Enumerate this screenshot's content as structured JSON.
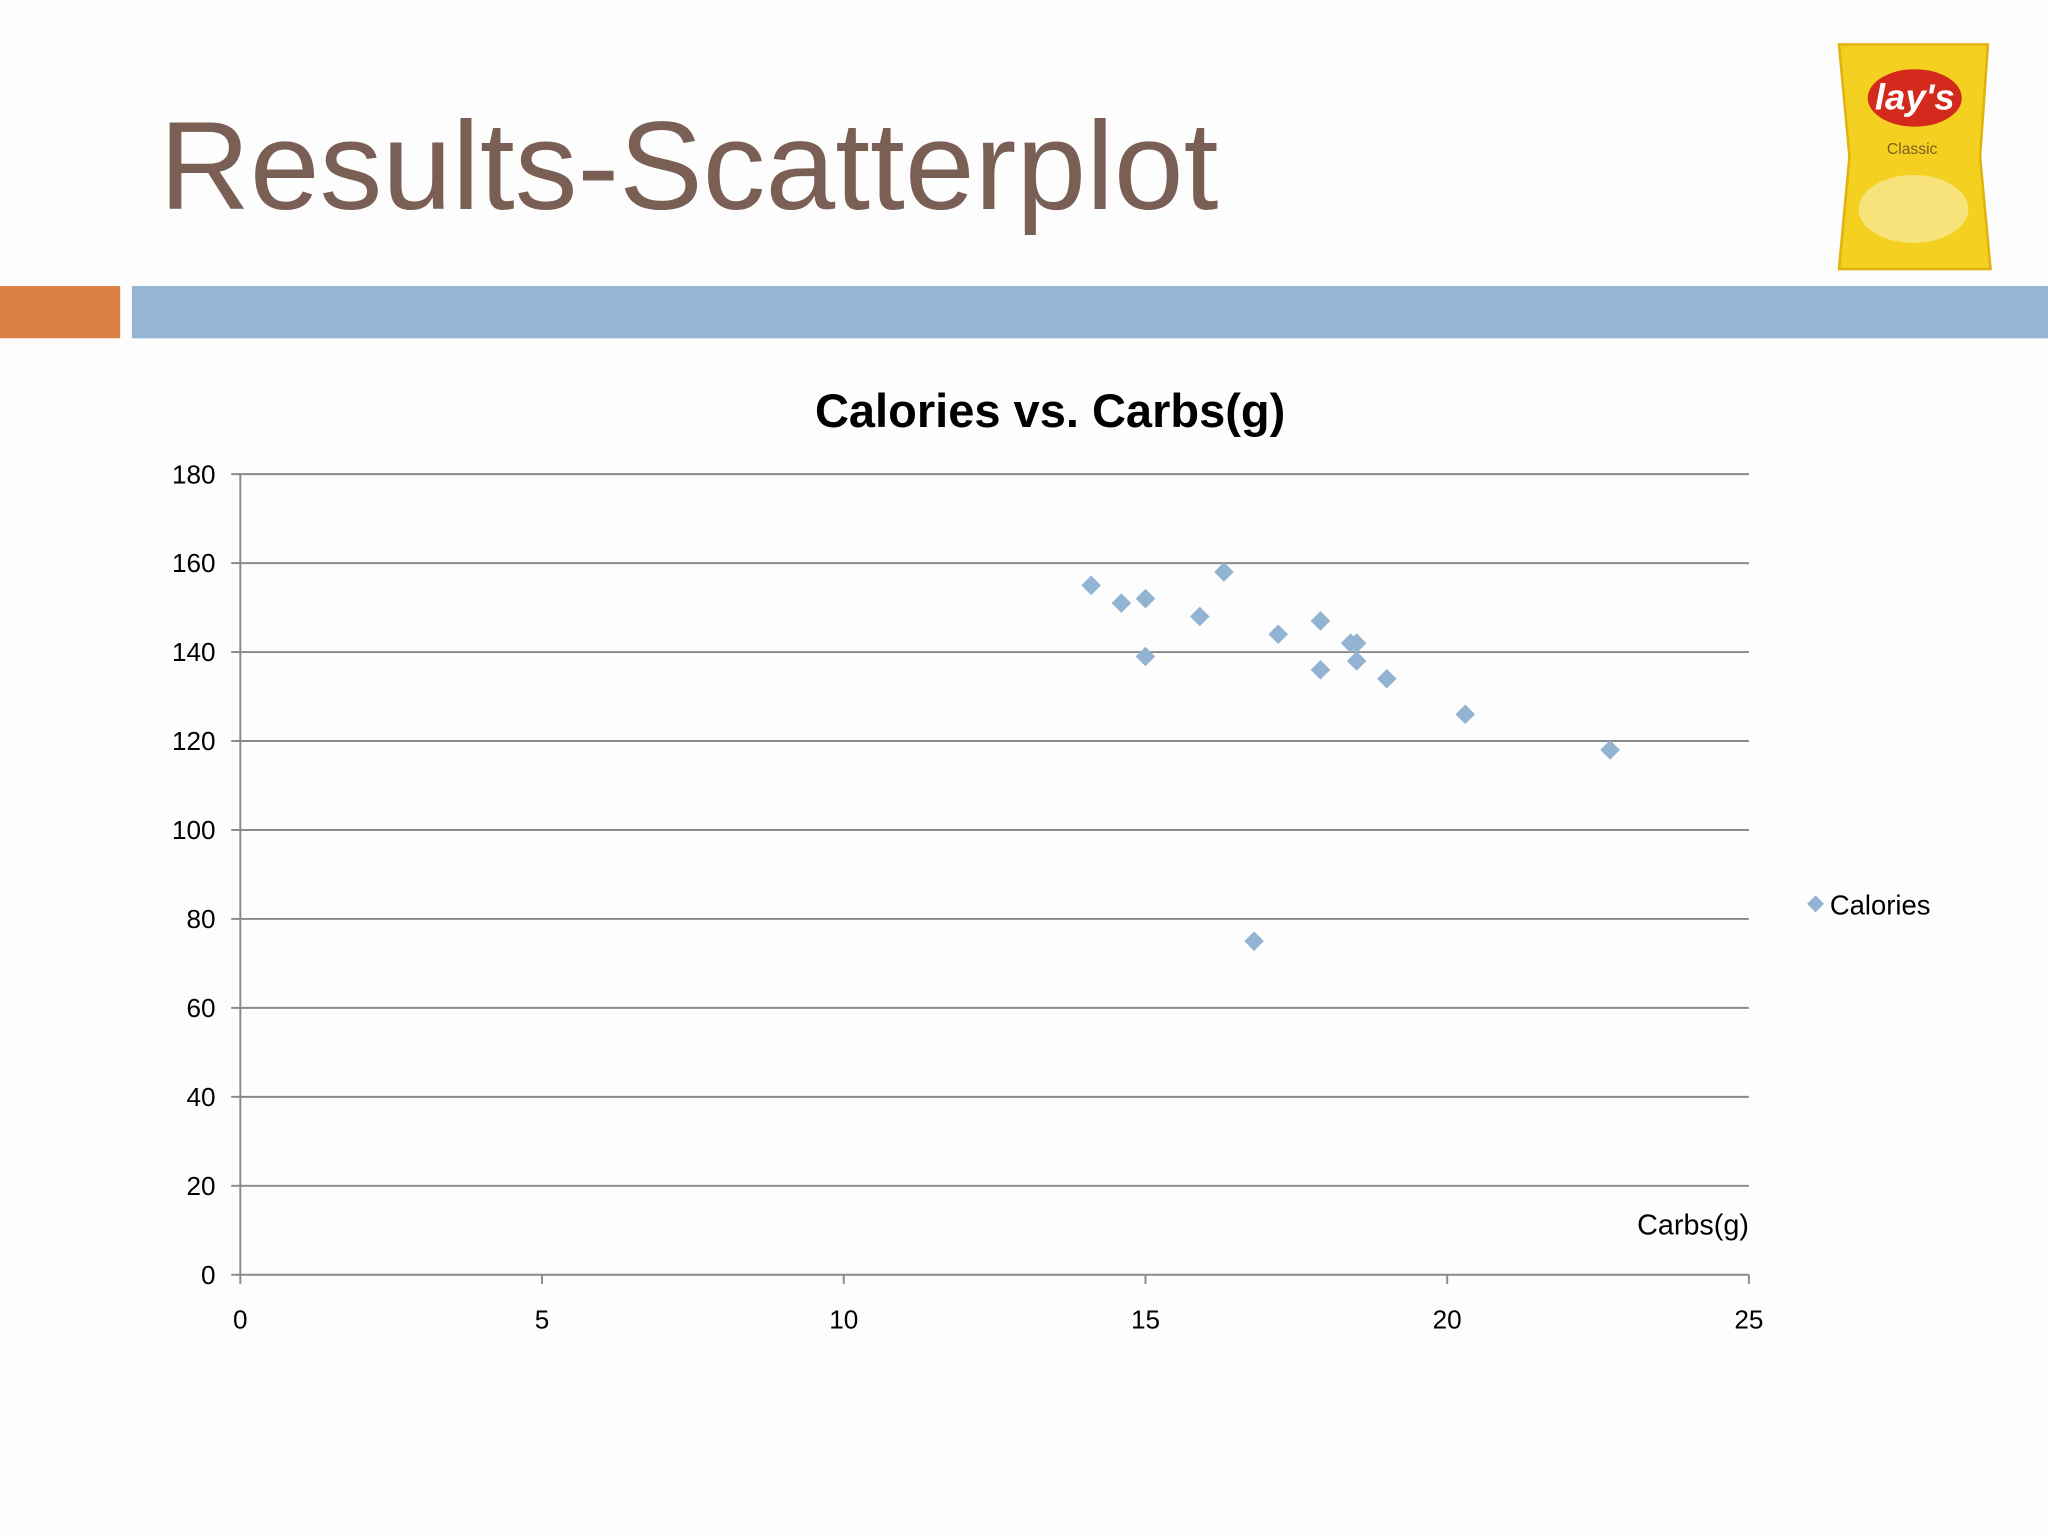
{
  "slide": {
    "title": "Results-Scatterplot",
    "logo_brand": "lay's",
    "logo_variant": "Classic"
  },
  "chart_data": {
    "type": "scatter",
    "title": "Calories vs. Carbs(g)",
    "x_label": "Carbs(g)",
    "x": [
      14.1,
      14.6,
      15.0,
      15.0,
      15.9,
      16.3,
      16.8,
      17.2,
      17.9,
      17.9,
      18.4,
      18.5,
      18.5,
      19.0,
      20.3,
      22.7
    ],
    "series": [
      {
        "name": "Calories",
        "color": "#93b3d2",
        "values": [
          155,
          151,
          152,
          139,
          148,
          158,
          75,
          144,
          147,
          136,
          142,
          142,
          138,
          134,
          126,
          118
        ]
      }
    ],
    "xlim": [
      0,
      25
    ],
    "xticks": [
      0,
      5,
      10,
      15,
      20,
      25
    ],
    "ylim": [
      0,
      180
    ],
    "yticks": [
      0,
      20,
      40,
      60,
      80,
      100,
      120,
      140,
      160,
      180
    ],
    "grid": true,
    "legend": "right"
  }
}
